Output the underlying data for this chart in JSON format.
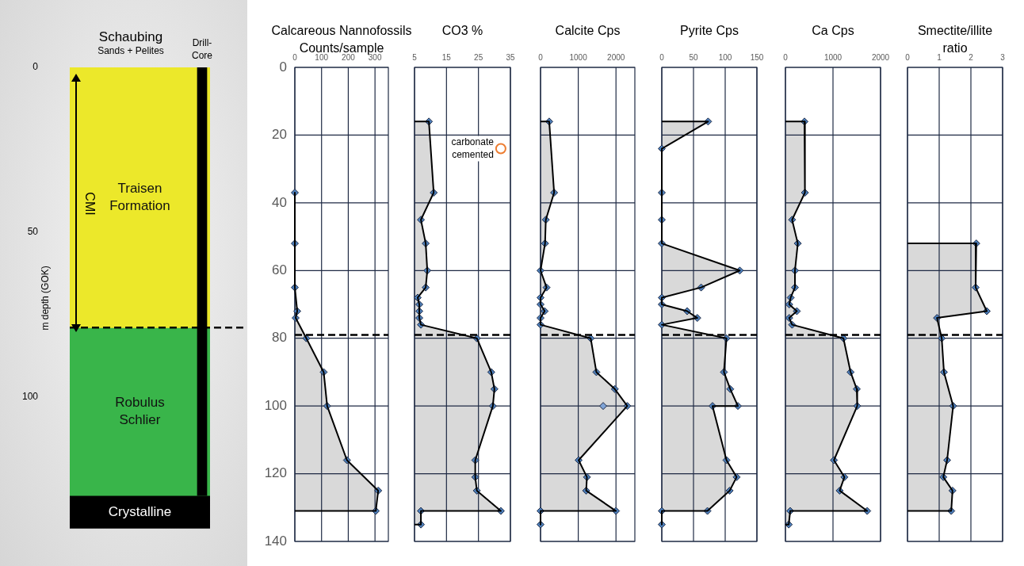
{
  "chart_data": [
    {
      "type": "bar",
      "title": "Schaubing",
      "subtitle": "Sands + Pelites",
      "ylabel": "m depth (GOK)",
      "categories": [
        null
      ],
      "tick_labels": "y",
      "grid": false,
      "legend": false,
      "ylim": [
        140,
        0
      ],
      "yticks": [
        0,
        50,
        100
      ],
      "series": [
        {
          "name": "Traisen Formation",
          "color": "#ece82a",
          "base": [
            0
          ],
          "values": [
            79
          ]
        },
        {
          "name": "Robulus Schlier",
          "color": "#39b54a",
          "base": [
            79
          ],
          "values": [
            51
          ]
        },
        {
          "name": "Crystalline",
          "color": "#000000",
          "base": [
            130
          ],
          "values": [
            10
          ]
        },
        {
          "name": "Drill-Core",
          "color": "#000000",
          "base": [
            0
          ],
          "values": [
            130
          ]
        }
      ],
      "annotations": [
        "CMI"
      ],
      "ref_lines": [
        {
          "axis": "y",
          "value": 79,
          "line_style": "dashed",
          "color": "#000000"
        }
      ]
    },
    {
      "type": "area",
      "title": "Calcareous Nannofossils Counts/sample",
      "xlim": [
        0,
        350
      ],
      "xticks": [
        0,
        100,
        200,
        300
      ],
      "ylim": [
        140,
        0
      ],
      "yticks": [
        0,
        20,
        40,
        60,
        80,
        100,
        120,
        140
      ],
      "grid": true,
      "legend": false,
      "marker": "diamond",
      "series": [
        {
          "marker": "none",
          "color": "#d9d9d9",
          "x": [
            0,
            0,
            0,
            9,
            3,
            43,
            108,
            121,
            195,
            312,
            303,
            0
          ],
          "values": [
            37,
            52,
            65,
            72,
            74,
            80,
            90,
            100,
            116,
            125,
            131,
            131
          ]
        },
        {
          "type": "scatter",
          "color": "#4f81bd",
          "x": [
            0,
            0,
            0,
            9,
            3,
            43,
            108,
            121,
            195,
            312,
            303
          ],
          "values": [
            37,
            52,
            65,
            72,
            74,
            80,
            90,
            100,
            116,
            125,
            131
          ]
        }
      ],
      "ref_lines": [
        {
          "axis": "y",
          "value": 79,
          "line_style": "dashed",
          "color": "#000000"
        }
      ]
    },
    {
      "type": "area",
      "title": "CO3 %",
      "xlim": [
        5,
        35
      ],
      "xticks": [
        5,
        15,
        25,
        35
      ],
      "ylim": [
        140,
        0
      ],
      "yticks": [
        0,
        20,
        40,
        60,
        80,
        100,
        120,
        140
      ],
      "grid": true,
      "legend": false,
      "marker": "diamond",
      "tick_labels": "x",
      "series": [
        {
          "marker": "none",
          "color": "#d9d9d9",
          "x": [
            5,
            9.5,
            11,
            7,
            8.5,
            9,
            8.5,
            6,
            6.5,
            6.5,
            6.5,
            7,
            24.5,
            29,
            30,
            29.5,
            24,
            24,
            24.5,
            32,
            7,
            7,
            5
          ],
          "values": [
            16,
            16,
            37,
            45,
            52,
            60,
            65,
            68,
            70,
            72,
            74,
            76,
            80,
            90,
            95,
            100,
            116,
            121,
            125,
            131,
            131,
            135,
            135
          ]
        },
        {
          "type": "scatter",
          "color": "#4f81bd",
          "x": [
            9.5,
            11,
            7,
            8.5,
            9,
            8.5,
            6,
            6.5,
            6.5,
            6.5,
            7,
            24.5,
            29,
            30,
            29.5,
            24,
            24,
            24.5,
            32,
            7,
            7
          ],
          "values": [
            16,
            37,
            45,
            52,
            60,
            65,
            68,
            70,
            72,
            74,
            76,
            80,
            90,
            95,
            100,
            116,
            121,
            125,
            131,
            131,
            135
          ]
        },
        {
          "type": "scatter",
          "marker": "circle",
          "color": "#ed7d31",
          "x": [
            32
          ],
          "values": [
            24
          ]
        }
      ],
      "annotations": [
        {
          "text": "carbonate cemented",
          "x": 32,
          "y": 24
        }
      ],
      "ref_lines": [
        {
          "axis": "y",
          "value": 79,
          "line_style": "dashed",
          "color": "#000000"
        }
      ]
    },
    {
      "type": "area",
      "title": "Calcite Cps",
      "xlim": [
        0,
        2500
      ],
      "xticks": [
        0,
        1000,
        2000
      ],
      "ylim": [
        140,
        0
      ],
      "yticks": [
        0,
        20,
        40,
        60,
        80,
        100,
        120,
        140
      ],
      "grid": true,
      "legend": false,
      "marker": "diamond",
      "tick_labels": "x",
      "series": [
        {
          "marker": "none",
          "color": "#d9d9d9",
          "x": [
            0,
            230,
            360,
            140,
            120,
            0,
            160,
            0,
            0,
            110,
            0,
            0,
            1330,
            1480,
            1970,
            2300,
            1010,
            1230,
            1210,
            2000,
            0,
            0
          ],
          "values": [
            16,
            16,
            37,
            45,
            52,
            60,
            65,
            68,
            70,
            72,
            74,
            76,
            80,
            90,
            95,
            100,
            116,
            121,
            125,
            131,
            131,
            135
          ]
        },
        {
          "type": "scatter",
          "color": "#4f81bd",
          "x": [
            230,
            360,
            140,
            120,
            0,
            160,
            0,
            0,
            110,
            0,
            0,
            1330,
            1480,
            1970,
            2300,
            1010,
            1230,
            1210,
            2000,
            0,
            0
          ],
          "values": [
            16,
            37,
            45,
            52,
            60,
            65,
            68,
            70,
            72,
            74,
            76,
            80,
            90,
            95,
            100,
            116,
            121,
            125,
            131,
            131,
            135
          ]
        },
        {
          "type": "scatter",
          "color": "#7fa3d6",
          "x": [
            1660
          ],
          "values": [
            100
          ]
        }
      ],
      "ref_lines": [
        {
          "axis": "y",
          "value": 79,
          "line_style": "dashed",
          "color": "#000000"
        }
      ]
    },
    {
      "type": "area",
      "title": "Pyrite Cps",
      "xlim": [
        0,
        150
      ],
      "xticks": [
        0,
        50,
        100,
        150
      ],
      "ylim": [
        140,
        0
      ],
      "yticks": [
        0,
        20,
        40,
        60,
        80,
        100,
        120,
        140
      ],
      "grid": true,
      "legend": false,
      "marker": "diamond",
      "tick_labels": "x",
      "series": [
        {
          "marker": "none",
          "color": "#d9d9d9",
          "x": [
            0,
            73,
            0,
            0,
            0,
            0,
            123,
            62,
            0,
            0,
            40,
            56,
            0,
            102,
            98,
            108,
            120,
            80,
            102,
            118,
            107,
            72,
            0,
            0
          ],
          "values": [
            16,
            16,
            24,
            37,
            45,
            52,
            60,
            65,
            68,
            70,
            72,
            74,
            76,
            80,
            90,
            95,
            100,
            100,
            116,
            121,
            125,
            131,
            131,
            135
          ]
        },
        {
          "type": "scatter",
          "color": "#4f81bd",
          "x": [
            73,
            0,
            0,
            0,
            0,
            123,
            62,
            0,
            0,
            40,
            56,
            0,
            102,
            98,
            108,
            120,
            80,
            102,
            118,
            107,
            72,
            0,
            0
          ],
          "values": [
            16,
            24,
            37,
            45,
            52,
            60,
            65,
            68,
            70,
            72,
            74,
            76,
            80,
            90,
            95,
            100,
            100,
            116,
            121,
            125,
            131,
            131,
            135
          ]
        }
      ],
      "ref_lines": [
        {
          "axis": "y",
          "value": 79,
          "line_style": "dashed",
          "color": "#000000"
        }
      ]
    },
    {
      "type": "area",
      "title": "Ca Cps",
      "xlim": [
        0,
        2000
      ],
      "xticks": [
        0,
        1000,
        2000
      ],
      "ylim": [
        140,
        0
      ],
      "yticks": [
        0,
        20,
        40,
        60,
        80,
        100,
        120,
        140
      ],
      "grid": true,
      "legend": false,
      "marker": "diamond",
      "tick_labels": "x",
      "series": [
        {
          "marker": "none",
          "color": "#d9d9d9",
          "x": [
            0,
            400,
            410,
            140,
            260,
            200,
            200,
            110,
            80,
            240,
            80,
            140,
            1220,
            1370,
            1500,
            1510,
            1020,
            1240,
            1140,
            1720,
            100,
            70,
            0
          ],
          "values": [
            16,
            16,
            37,
            45,
            52,
            60,
            65,
            68,
            70,
            72,
            74,
            76,
            80,
            90,
            95,
            100,
            116,
            121,
            125,
            131,
            131,
            135,
            135
          ]
        },
        {
          "type": "scatter",
          "color": "#4f81bd",
          "x": [
            400,
            410,
            140,
            260,
            200,
            200,
            110,
            80,
            240,
            80,
            140,
            1220,
            1370,
            1500,
            1510,
            1020,
            1240,
            1140,
            1720,
            100,
            70
          ],
          "values": [
            16,
            37,
            45,
            52,
            60,
            65,
            68,
            70,
            72,
            74,
            76,
            80,
            90,
            95,
            100,
            116,
            121,
            125,
            131,
            131,
            135
          ]
        }
      ],
      "ref_lines": [
        {
          "axis": "y",
          "value": 79,
          "line_style": "dashed",
          "color": "#000000"
        }
      ]
    },
    {
      "type": "area",
      "title": "Smectite/illite ratio",
      "xlim": [
        0,
        3
      ],
      "xticks": [
        0,
        1,
        2,
        3
      ],
      "ylim": [
        140,
        0
      ],
      "yticks": [
        0,
        20,
        40,
        60,
        80,
        100,
        120,
        140
      ],
      "grid": true,
      "legend": false,
      "marker": "diamond",
      "tick_labels": "x",
      "series": [
        {
          "marker": "none",
          "color": "#d9d9d9",
          "x": [
            0,
            2.17,
            2.15,
            2.5,
            0.93,
            1.08,
            1.15,
            1.44,
            1.25,
            1.13,
            1.42,
            1.38,
            0
          ],
          "values": [
            52,
            52,
            65,
            72,
            74,
            80,
            90,
            100,
            116,
            121,
            125,
            131,
            131
          ]
        },
        {
          "type": "scatter",
          "color": "#4f81bd",
          "x": [
            2.17,
            2.15,
            2.5,
            0.93,
            1.08,
            1.15,
            1.44,
            1.25,
            1.13,
            1.42,
            1.38
          ],
          "values": [
            52,
            65,
            72,
            74,
            80,
            90,
            100,
            116,
            121,
            125,
            131
          ]
        }
      ],
      "ref_lines": [
        {
          "axis": "y",
          "value": 79,
          "line_style": "dashed",
          "color": "#000000"
        }
      ]
    }
  ]
}
